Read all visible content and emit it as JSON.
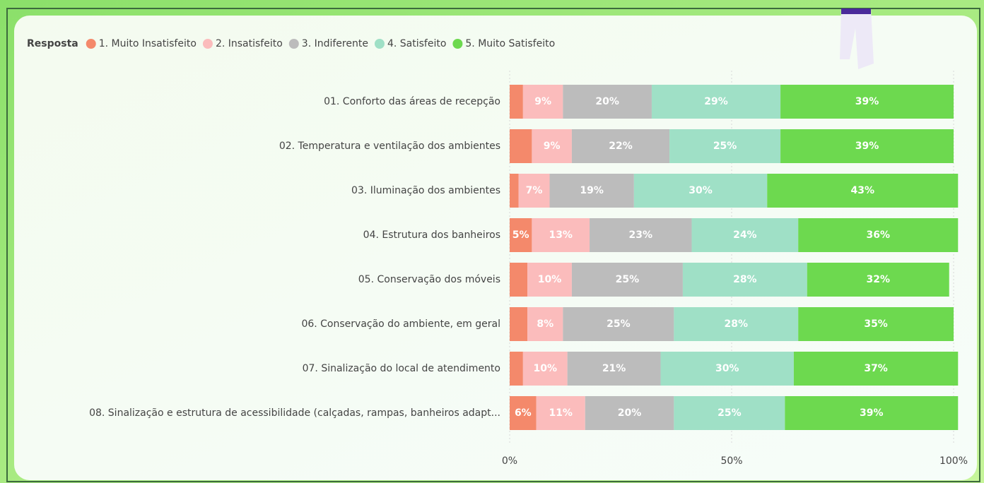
{
  "chart_data": {
    "type": "stacked-bar-horizontal",
    "legend_title": "Resposta",
    "categories": [
      "01. Conforto das áreas de recepção",
      "02. Temperatura e ventilação dos ambientes",
      "03. Iluminação dos ambientes",
      "04. Estrutura dos banheiros",
      "05. Conservação dos móveis",
      "06. Conservação do ambiente, em geral",
      "07. Sinalização do local de atendimento",
      "08. Sinalização e estrutura de acessibilidade (calçadas, rampas, banheiros adapt..."
    ],
    "series": [
      {
        "name": "1. Muito Insatisfeito",
        "color": "#f4896b",
        "values": [
          3,
          5,
          2,
          5,
          4,
          4,
          3,
          6
        ],
        "value_labels": [
          null,
          null,
          null,
          "5%",
          null,
          null,
          null,
          "6%"
        ]
      },
      {
        "name": "2. Insatisfeito",
        "color": "#fbbcbc",
        "values": [
          9,
          9,
          7,
          13,
          10,
          8,
          10,
          11
        ],
        "value_labels": [
          "9%",
          "9%",
          "7%",
          "13%",
          "10%",
          "8%",
          "10%",
          "11%"
        ]
      },
      {
        "name": "3. Indiferente",
        "color": "#bcbcbc",
        "values": [
          20,
          22,
          19,
          23,
          25,
          25,
          21,
          20
        ],
        "value_labels": [
          "20%",
          "22%",
          "19%",
          "23%",
          "25%",
          "25%",
          "21%",
          "20%"
        ]
      },
      {
        "name": "4. Satisfeito",
        "color": "#9fe0c6",
        "values": [
          29,
          25,
          30,
          24,
          28,
          28,
          30,
          25
        ],
        "value_labels": [
          "29%",
          "25%",
          "30%",
          "24%",
          "28%",
          "28%",
          "30%",
          "25%"
        ]
      },
      {
        "name": "5. Muito Satisfeito",
        "color": "#6dd94f",
        "values": [
          39,
          39,
          43,
          36,
          32,
          35,
          37,
          39
        ],
        "value_labels": [
          "39%",
          "39%",
          "43%",
          "36%",
          "32%",
          "35%",
          "37%",
          "39%"
        ]
      }
    ],
    "xlim": [
      0,
      100
    ],
    "xticks": [
      {
        "value": 0,
        "label": "0%"
      },
      {
        "value": 50,
        "label": "50%"
      },
      {
        "value": 100,
        "label": "100%"
      }
    ],
    "grid": true
  }
}
